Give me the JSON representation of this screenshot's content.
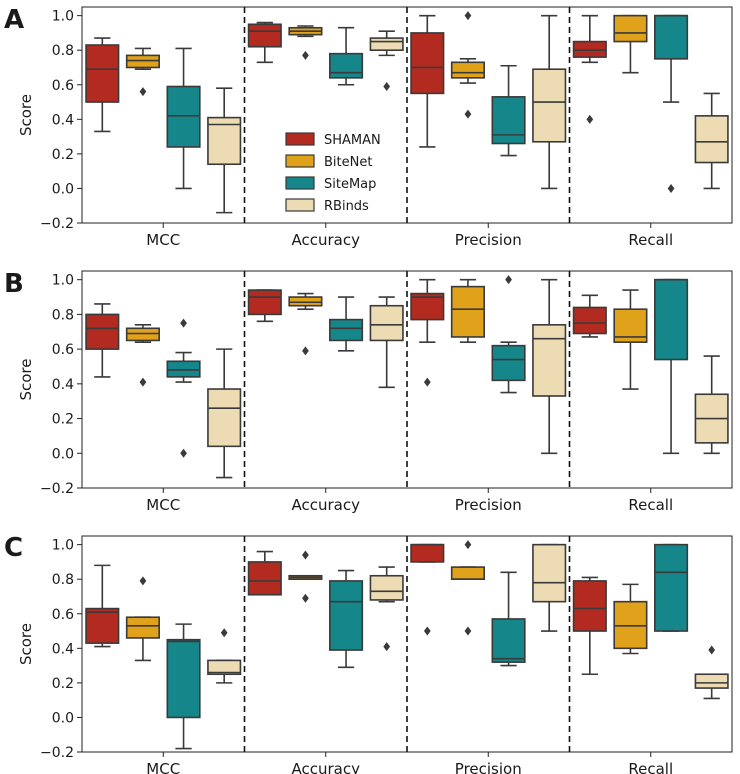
{
  "colors": {
    "SHAMAN": "#b22a20",
    "BiteNet": "#e0a11b",
    "SiteMap": "#15868a",
    "RBinds": "#eddcb3",
    "stroke": "#3a3a3a"
  },
  "legend": {
    "entries": [
      "SHAMAN",
      "BiteNet",
      "SiteMap",
      "RBinds"
    ],
    "placement": "inside panel A, between MCC and Accuracy groups"
  },
  "chart_data": [
    {
      "panel": "A",
      "type": "box",
      "ylabel": "Score",
      "ylim": [
        -0.2,
        1.05
      ],
      "yticks": [
        "−0.2",
        "0.0",
        "0.2",
        "0.4",
        "0.6",
        "0.8",
        "1.0"
      ],
      "categories": [
        "MCC",
        "Accuracy",
        "Precision",
        "Recall"
      ],
      "series": [
        {
          "name": "SHAMAN",
          "boxes": [
            {
              "wl": 0.33,
              "q1": 0.5,
              "med": 0.69,
              "q3": 0.83,
              "wh": 0.87,
              "out": []
            },
            {
              "wl": 0.73,
              "q1": 0.82,
              "med": 0.91,
              "q3": 0.95,
              "wh": 0.96,
              "out": []
            },
            {
              "wl": 0.24,
              "q1": 0.55,
              "med": 0.7,
              "q3": 0.9,
              "wh": 1.0,
              "out": []
            },
            {
              "wl": 0.73,
              "q1": 0.76,
              "med": 0.8,
              "q3": 0.85,
              "wh": 1.0,
              "out": [
                0.4
              ]
            }
          ]
        },
        {
          "name": "BiteNet",
          "boxes": [
            {
              "wl": 0.69,
              "q1": 0.7,
              "med": 0.74,
              "q3": 0.77,
              "wh": 0.81,
              "out": [
                0.56
              ]
            },
            {
              "wl": 0.88,
              "q1": 0.89,
              "med": 0.91,
              "q3": 0.93,
              "wh": 0.94,
              "out": [
                0.77
              ]
            },
            {
              "wl": 0.61,
              "q1": 0.64,
              "med": 0.67,
              "q3": 0.73,
              "wh": 0.75,
              "out": [
                1.0,
                0.43
              ]
            },
            {
              "wl": 0.67,
              "q1": 0.85,
              "med": 0.9,
              "q3": 1.0,
              "wh": 1.0,
              "out": []
            }
          ]
        },
        {
          "name": "SiteMap",
          "boxes": [
            {
              "wl": 0.0,
              "q1": 0.24,
              "med": 0.42,
              "q3": 0.59,
              "wh": 0.81,
              "out": []
            },
            {
              "wl": 0.6,
              "q1": 0.64,
              "med": 0.67,
              "q3": 0.78,
              "wh": 0.93,
              "out": []
            },
            {
              "wl": 0.19,
              "q1": 0.26,
              "med": 0.31,
              "q3": 0.53,
              "wh": 0.71,
              "out": []
            },
            {
              "wl": 0.5,
              "q1": 0.75,
              "med": 1.0,
              "q3": 1.0,
              "wh": 1.0,
              "out": [
                0.0
              ]
            }
          ]
        },
        {
          "name": "RBinds",
          "boxes": [
            {
              "wl": -0.14,
              "q1": 0.14,
              "med": 0.37,
              "q3": 0.41,
              "wh": 0.58,
              "out": []
            },
            {
              "wl": 0.77,
              "q1": 0.8,
              "med": 0.85,
              "q3": 0.87,
              "wh": 0.91,
              "out": [
                0.59
              ]
            },
            {
              "wl": 0.0,
              "q1": 0.27,
              "med": 0.5,
              "q3": 0.69,
              "wh": 1.0,
              "out": []
            },
            {
              "wl": 0.0,
              "q1": 0.15,
              "med": 0.27,
              "q3": 0.42,
              "wh": 0.55,
              "out": []
            }
          ]
        }
      ]
    },
    {
      "panel": "B",
      "type": "box",
      "ylabel": "Score",
      "ylim": [
        -0.2,
        1.05
      ],
      "yticks": [
        "−0.2",
        "0.0",
        "0.2",
        "0.4",
        "0.6",
        "0.8",
        "1.0"
      ],
      "categories": [
        "MCC",
        "Accuracy",
        "Precision",
        "Recall"
      ],
      "series": [
        {
          "name": "SHAMAN",
          "boxes": [
            {
              "wl": 0.44,
              "q1": 0.6,
              "med": 0.72,
              "q3": 0.8,
              "wh": 0.86,
              "out": []
            },
            {
              "wl": 0.76,
              "q1": 0.8,
              "med": 0.9,
              "q3": 0.94,
              "wh": 0.94,
              "out": []
            },
            {
              "wl": 0.64,
              "q1": 0.77,
              "med": 0.9,
              "q3": 0.92,
              "wh": 1.0,
              "out": [
                0.41
              ]
            },
            {
              "wl": 0.67,
              "q1": 0.69,
              "med": 0.75,
              "q3": 0.84,
              "wh": 0.91,
              "out": []
            }
          ]
        },
        {
          "name": "BiteNet",
          "boxes": [
            {
              "wl": 0.64,
              "q1": 0.65,
              "med": 0.69,
              "q3": 0.72,
              "wh": 0.74,
              "out": [
                0.41
              ]
            },
            {
              "wl": 0.83,
              "q1": 0.85,
              "med": 0.87,
              "q3": 0.9,
              "wh": 0.92,
              "out": [
                0.59
              ]
            },
            {
              "wl": 0.64,
              "q1": 0.67,
              "med": 0.83,
              "q3": 0.96,
              "wh": 1.0,
              "out": []
            },
            {
              "wl": 0.37,
              "q1": 0.64,
              "med": 0.67,
              "q3": 0.83,
              "wh": 0.94,
              "out": []
            }
          ]
        },
        {
          "name": "SiteMap",
          "boxes": [
            {
              "wl": 0.41,
              "q1": 0.44,
              "med": 0.48,
              "q3": 0.53,
              "wh": 0.58,
              "out": [
                0.75,
                0.0
              ]
            },
            {
              "wl": 0.59,
              "q1": 0.65,
              "med": 0.72,
              "q3": 0.77,
              "wh": 0.9,
              "out": []
            },
            {
              "wl": 0.35,
              "q1": 0.42,
              "med": 0.54,
              "q3": 0.62,
              "wh": 0.64,
              "out": [
                1.0
              ]
            },
            {
              "wl": 0.0,
              "q1": 0.54,
              "med": 1.0,
              "q3": 1.0,
              "wh": 1.0,
              "out": []
            }
          ]
        },
        {
          "name": "RBinds",
          "boxes": [
            {
              "wl": -0.14,
              "q1": 0.04,
              "med": 0.26,
              "q3": 0.37,
              "wh": 0.6,
              "out": []
            },
            {
              "wl": 0.38,
              "q1": 0.65,
              "med": 0.74,
              "q3": 0.85,
              "wh": 0.9,
              "out": []
            },
            {
              "wl": 0.0,
              "q1": 0.33,
              "med": 0.66,
              "q3": 0.74,
              "wh": 1.0,
              "out": []
            },
            {
              "wl": 0.0,
              "q1": 0.06,
              "med": 0.2,
              "q3": 0.34,
              "wh": 0.56,
              "out": []
            }
          ]
        }
      ]
    },
    {
      "panel": "C",
      "type": "box",
      "ylabel": "Score",
      "ylim": [
        -0.2,
        1.05
      ],
      "yticks": [
        "−0.2",
        "0.0",
        "0.2",
        "0.4",
        "0.6",
        "0.8",
        "1.0"
      ],
      "categories": [
        "MCC",
        "Accuracy",
        "Precision",
        "Recall"
      ],
      "series": [
        {
          "name": "SHAMAN",
          "boxes": [
            {
              "wl": 0.41,
              "q1": 0.43,
              "med": 0.61,
              "q3": 0.63,
              "wh": 0.88,
              "out": []
            },
            {
              "wl": 0.71,
              "q1": 0.71,
              "med": 0.79,
              "q3": 0.9,
              "wh": 0.96,
              "out": []
            },
            {
              "wl": 0.9,
              "q1": 0.9,
              "med": 1.0,
              "q3": 1.0,
              "wh": 1.0,
              "out": [
                0.5
              ]
            },
            {
              "wl": 0.25,
              "q1": 0.5,
              "med": 0.63,
              "q3": 0.79,
              "wh": 0.81,
              "out": []
            }
          ]
        },
        {
          "name": "BiteNet",
          "boxes": [
            {
              "wl": 0.33,
              "q1": 0.46,
              "med": 0.53,
              "q3": 0.58,
              "wh": 0.58,
              "out": [
                0.79
              ]
            },
            {
              "wl": 0.8,
              "q1": 0.8,
              "med": 0.81,
              "q3": 0.82,
              "wh": 0.82,
              "out": [
                0.94,
                0.69
              ]
            },
            {
              "wl": 0.8,
              "q1": 0.8,
              "med": 0.8,
              "q3": 0.87,
              "wh": 0.87,
              "out": [
                1.0,
                0.5
              ]
            },
            {
              "wl": 0.37,
              "q1": 0.4,
              "med": 0.53,
              "q3": 0.67,
              "wh": 0.77,
              "out": []
            }
          ]
        },
        {
          "name": "SiteMap",
          "boxes": [
            {
              "wl": -0.18,
              "q1": 0.0,
              "med": 0.44,
              "q3": 0.45,
              "wh": 0.54,
              "out": []
            },
            {
              "wl": 0.29,
              "q1": 0.39,
              "med": 0.67,
              "q3": 0.79,
              "wh": 0.85,
              "out": []
            },
            {
              "wl": 0.3,
              "q1": 0.32,
              "med": 0.34,
              "q3": 0.57,
              "wh": 0.84,
              "out": []
            },
            {
              "wl": 0.5,
              "q1": 0.5,
              "med": 0.84,
              "q3": 1.0,
              "wh": 1.0,
              "out": []
            }
          ]
        },
        {
          "name": "RBinds",
          "boxes": [
            {
              "wl": 0.2,
              "q1": 0.25,
              "med": 0.26,
              "q3": 0.33,
              "wh": 0.33,
              "out": [
                0.49
              ]
            },
            {
              "wl": 0.67,
              "q1": 0.68,
              "med": 0.73,
              "q3": 0.82,
              "wh": 0.87,
              "out": [
                0.41
              ]
            },
            {
              "wl": 0.5,
              "q1": 0.67,
              "med": 0.78,
              "q3": 1.0,
              "wh": 1.0,
              "out": []
            },
            {
              "wl": 0.11,
              "q1": 0.17,
              "med": 0.2,
              "q3": 0.25,
              "wh": 0.25,
              "out": [
                0.39
              ]
            }
          ]
        }
      ]
    }
  ]
}
